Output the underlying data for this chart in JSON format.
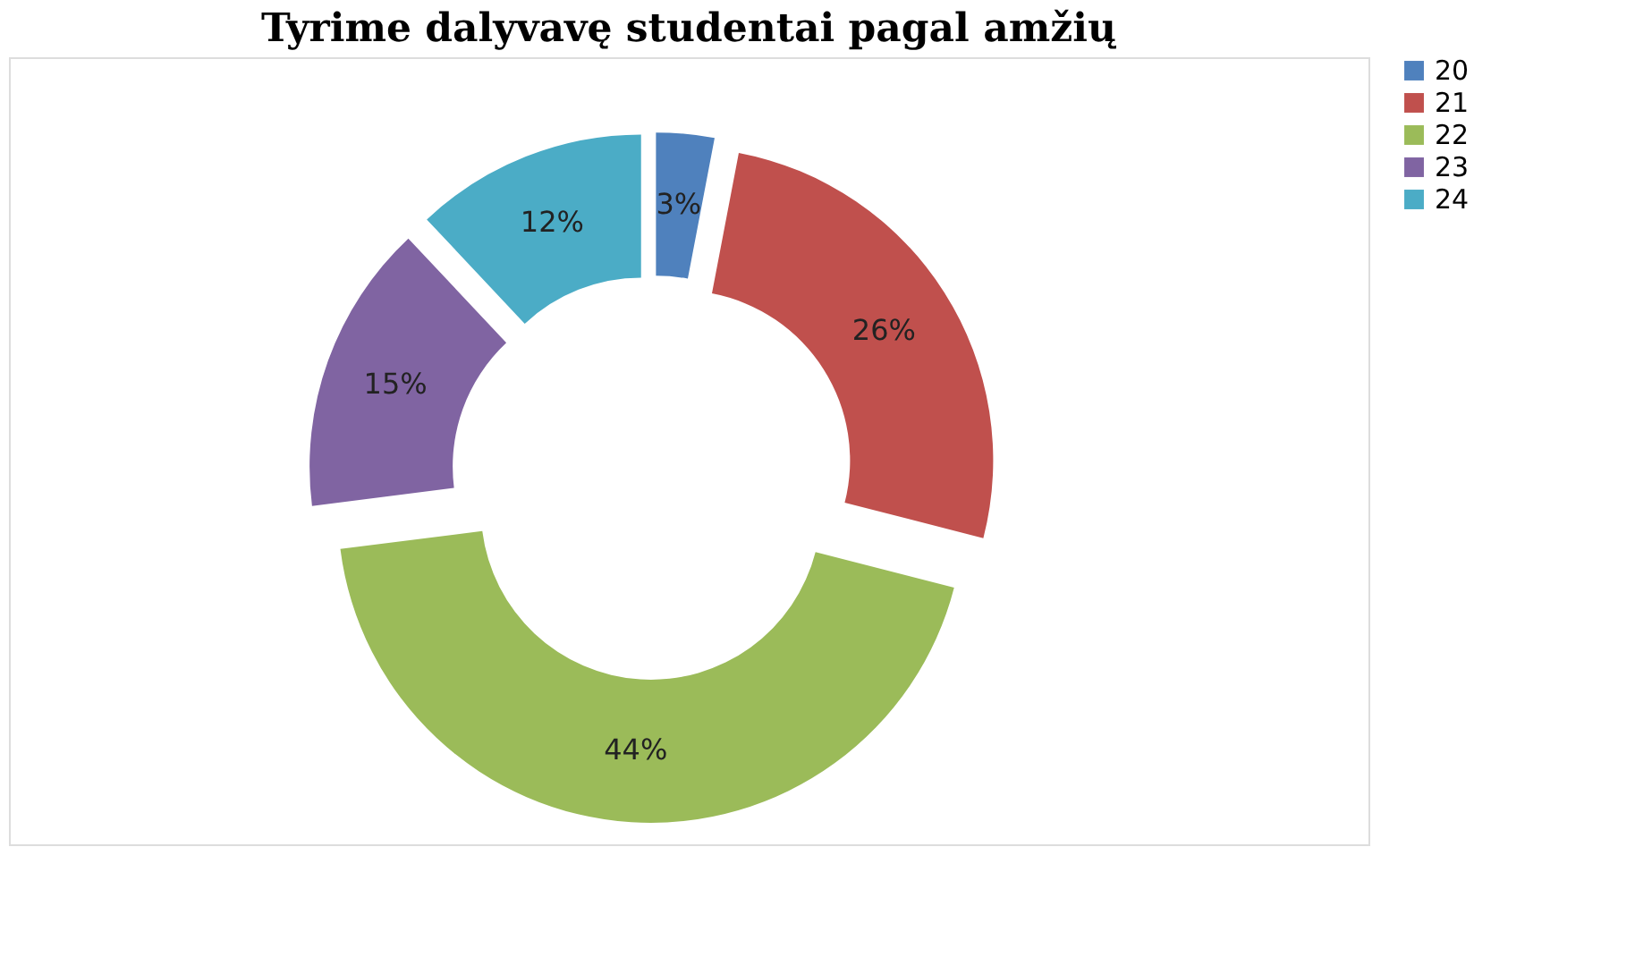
{
  "chart_data": {
    "type": "donut",
    "title": "Tyrime dalyvavę studentai pagal amžių",
    "categories": [
      "20",
      "21",
      "22",
      "23",
      "24"
    ],
    "values": [
      3,
      26,
      44,
      15,
      12
    ],
    "colors": [
      "#4f81bd",
      "#c0504d",
      "#9bbb59",
      "#8064a2",
      "#4bacc6"
    ],
    "value_labels": [
      "3%",
      "26%",
      "44%",
      "15%",
      "12%"
    ],
    "legend": "right"
  }
}
